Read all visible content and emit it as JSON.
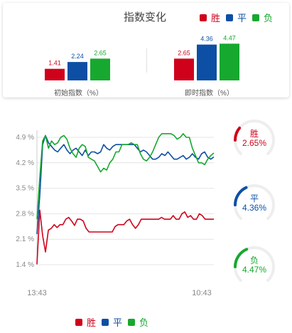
{
  "header": {
    "title": "指数变化"
  },
  "legend": [
    {
      "label": "胜",
      "color": "#d0021b"
    },
    {
      "label": "平",
      "color": "#0d4fa5"
    },
    {
      "label": "负",
      "color": "#17a82f"
    }
  ],
  "colors": {
    "win": "#d0021b",
    "draw": "#0d4fa5",
    "lose": "#17a82f",
    "grid": "#e4e4e4",
    "axis_text": "#888888"
  },
  "gauges": [
    {
      "name": "胜",
      "value": "2.65%",
      "color": "#d0021b",
      "percent": 2.65
    },
    {
      "name": "平",
      "value": "4.36%",
      "color": "#0d4fa5",
      "percent": 4.36
    },
    {
      "name": "负",
      "value": "4.47%",
      "color": "#17a82f",
      "percent": 4.47
    }
  ],
  "chart_data": [
    {
      "type": "bar",
      "categories": [
        "初始指数（%）",
        "即时指数（%）"
      ],
      "series": [
        {
          "name": "胜",
          "values": [
            1.41,
            2.65
          ]
        },
        {
          "name": "平",
          "values": [
            2.24,
            4.36
          ]
        },
        {
          "name": "负",
          "values": [
            2.65,
            4.47
          ]
        }
      ],
      "value_labels": [
        [
          "1.41",
          "2.24",
          "2.65"
        ],
        [
          "2.65",
          "4.36",
          "4.47"
        ]
      ],
      "ylim": [
        0,
        4.8
      ]
    },
    {
      "type": "line",
      "x_ticks": [
        "13:43",
        "10:43"
      ],
      "y_ticks": [
        "1.4 %",
        "2.1 %",
        "2.8 %",
        "3.5 %",
        "4.2 %",
        "4.9 %"
      ],
      "ylim": [
        1.4,
        4.9
      ],
      "grid": true,
      "legend_position": "bottom",
      "series": [
        {
          "name": "胜",
          "values": [
            1.41,
            2.9,
            2.2,
            1.75,
            2.35,
            2.4,
            2.5,
            2.42,
            2.5,
            2.5,
            2.65,
            2.7,
            2.6,
            2.48,
            2.65,
            2.65,
            2.6,
            2.4,
            2.3,
            2.3,
            2.3,
            2.3,
            2.3,
            2.3,
            2.3,
            2.3,
            2.3,
            2.45,
            2.5,
            2.5,
            2.5,
            2.6,
            2.65,
            2.5,
            2.4,
            2.5,
            2.65,
            2.65,
            2.65,
            2.65,
            2.65,
            2.65,
            2.65,
            2.7,
            2.65,
            2.65,
            2.65,
            2.75,
            2.65,
            2.65,
            2.8,
            2.85,
            2.7,
            2.75,
            2.65,
            2.65,
            2.8,
            2.75,
            2.65,
            2.65,
            2.65,
            2.65
          ]
        },
        {
          "name": "平",
          "values": [
            2.24,
            3.3,
            4.7,
            4.95,
            4.75,
            4.65,
            4.55,
            4.5,
            4.6,
            4.7,
            4.55,
            4.45,
            4.55,
            4.6,
            4.5,
            4.4,
            4.55,
            4.4,
            4.5,
            4.5,
            4.45,
            4.5,
            4.7,
            4.6,
            4.55,
            4.65,
            4.7,
            4.7,
            4.7,
            4.7,
            4.7,
            4.7,
            4.7,
            4.6,
            4.5,
            4.55,
            4.5,
            4.4,
            4.3,
            4.3,
            4.35,
            4.45,
            4.4,
            4.5,
            4.4,
            4.3,
            4.3,
            4.35,
            4.4,
            4.3,
            4.35,
            4.45,
            4.35,
            4.3,
            4.45,
            4.5,
            4.35,
            4.3,
            4.36
          ]
        },
        {
          "name": "负",
          "values": [
            2.65,
            3.8,
            4.8,
            4.95,
            4.6,
            4.8,
            4.7,
            4.75,
            4.9,
            4.95,
            4.85,
            4.6,
            4.45,
            4.35,
            4.6,
            4.7,
            4.65,
            4.35,
            4.3,
            4.25,
            4.1,
            3.95,
            4.05,
            4.0,
            4.2,
            4.3,
            4.5,
            4.5,
            4.7,
            4.7,
            4.7,
            4.75,
            4.7,
            4.7,
            4.45,
            4.3,
            4.25,
            4.35,
            4.5,
            4.7,
            4.9,
            5.0,
            5.0,
            5.0,
            5.0,
            4.95,
            4.85,
            4.9,
            5.0,
            4.9,
            4.9,
            4.6,
            4.4,
            4.2,
            4.2,
            4.15,
            4.3,
            4.4,
            4.47
          ]
        }
      ]
    }
  ]
}
